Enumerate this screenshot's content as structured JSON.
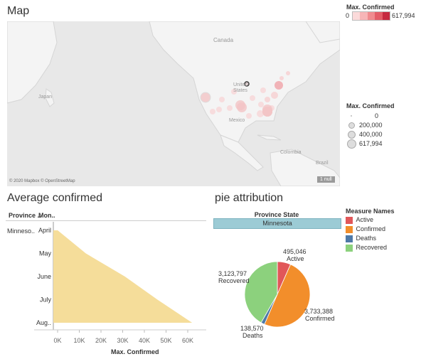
{
  "map": {
    "title": "Map",
    "attribution": "© 2020 Mapbox © OpenStreetMap",
    "null_badge": "1 null",
    "labels": {
      "canada": "Canada",
      "united_states": "United States",
      "mexico": "Mexico",
      "japan": "Japan",
      "colombia": "Colombia",
      "brazil": "Brazil"
    }
  },
  "color_legend": {
    "title": "Max. Confirmed",
    "min": "0",
    "max": "617,994",
    "colors": [
      "#fbdada",
      "#f7b5b7",
      "#f08b8f",
      "#e35d67",
      "#c62a40"
    ]
  },
  "size_legend": {
    "title": "Max. Confirmed",
    "items": [
      "0",
      "200,000",
      "400,000",
      "617,994"
    ]
  },
  "average_confirmed": {
    "title": "Average confirmed",
    "header_province": "Province ..",
    "header_month": "Mon..",
    "province": "Minneso..",
    "months": [
      "April",
      "May",
      "June",
      "July",
      "Aug.."
    ],
    "x_ticks": [
      "0K",
      "10K",
      "20K",
      "30K",
      "40K",
      "50K",
      "60K"
    ],
    "x_label": "Max. Confirmed"
  },
  "pie": {
    "title": "pie attribution",
    "filter_header": "Province State",
    "filter_value": "Minnesota",
    "legend_title": "Measure Names",
    "legend": [
      {
        "name": "Active",
        "color": "#e15759"
      },
      {
        "name": "Confirmed",
        "color": "#f28e2b"
      },
      {
        "name": "Deaths",
        "color": "#4e79a7"
      },
      {
        "name": "Recovered",
        "color": "#8cd17d"
      }
    ],
    "labels": {
      "active_value": "495,046",
      "active_name": "Active",
      "confirmed_value": "3,733,388",
      "confirmed_name": "Confirmed",
      "deaths_value": "138,570",
      "deaths_name": "Deaths",
      "recovered_value": "3,123,797",
      "recovered_name": "Recovered"
    }
  },
  "chart_data": [
    {
      "type": "area",
      "title": "Average confirmed",
      "xlabel": "Max. Confirmed",
      "ylabel": "",
      "categories": [
        "April",
        "May",
        "June",
        "July",
        "Aug.."
      ],
      "series": [
        {
          "values": [
            2000,
            15000,
            33000,
            48000,
            64000
          ]
        }
      ],
      "xlim": [
        0,
        65000
      ],
      "color": "#f5dd9a"
    },
    {
      "type": "pie",
      "title": "pie attribution",
      "categories": [
        "Active",
        "Confirmed",
        "Deaths",
        "Recovered"
      ],
      "values": [
        495046,
        3733388,
        138570,
        3123797
      ],
      "colors": [
        "#e15759",
        "#f28e2b",
        "#4e79a7",
        "#8cd17d"
      ]
    }
  ]
}
